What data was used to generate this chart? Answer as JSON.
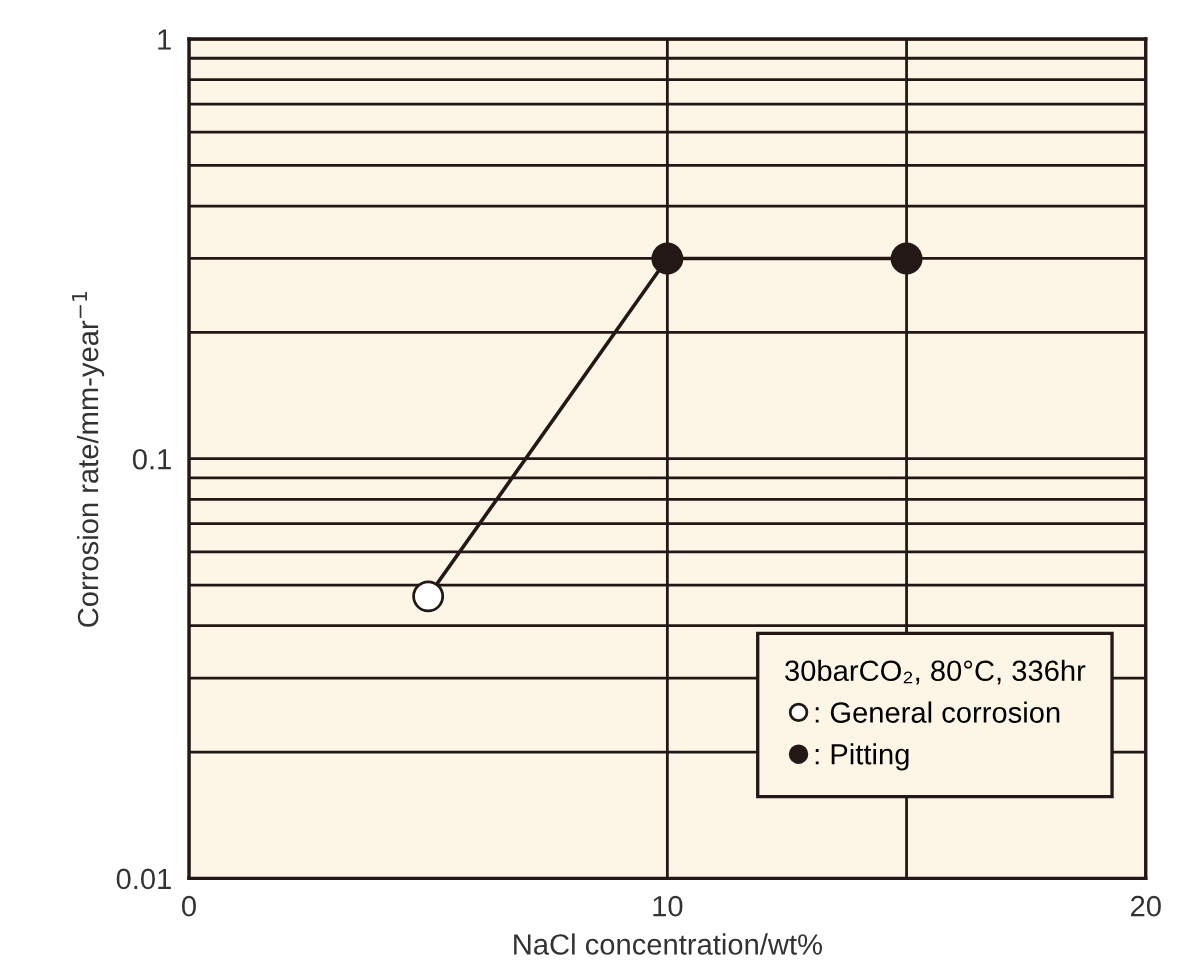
{
  "chart_data": {
    "type": "scatter",
    "xlabel": "NaCl concentration/wt%",
    "ylabel": "Corrosion rate/mm-year$^{−1}$",
    "legend_title": "30barCO₂, 80°C, 336hr",
    "series": [
      {
        "type": "line",
        "color": "#231815",
        "x": [
          5,
          10,
          15
        ],
        "values": [
          0.047,
          0.3,
          0.3
        ],
        "marker": "none",
        "line_style": "solid"
      },
      {
        "name": ": General corrosion",
        "color": "#ffffff",
        "x": [
          5
        ],
        "values": [
          0.047
        ],
        "marker": "circle"
      },
      {
        "name": ": Pitting",
        "color": "#231815",
        "x": [
          10,
          15
        ],
        "values": [
          0.3,
          0.3
        ],
        "marker": "circle"
      }
    ],
    "xlim": [
      0,
      20
    ],
    "xticks": [
      0,
      10,
      {
        "value": 15,
        "label": null
      },
      20
    ],
    "ylim": [
      0.01,
      1
    ],
    "log": "y",
    "yticks": [
      0.01,
      {
        "value": 0.02,
        "label": null
      },
      {
        "value": 0.03,
        "label": null
      },
      {
        "value": 0.04,
        "label": null
      },
      {
        "value": 0.05,
        "label": null
      },
      {
        "value": 0.06,
        "label": null
      },
      {
        "value": 0.07,
        "label": null
      },
      {
        "value": 0.08,
        "label": null
      },
      {
        "value": 0.09,
        "label": null
      },
      0.1,
      {
        "value": 0.2,
        "label": null
      },
      {
        "value": 0.3,
        "label": null
      },
      {
        "value": 0.4,
        "label": null
      },
      {
        "value": 0.5,
        "label": null
      },
      {
        "value": 0.6,
        "label": null
      },
      {
        "value": 0.7,
        "label": null
      },
      {
        "value": 0.8,
        "label": null
      },
      {
        "value": 0.9,
        "label": null
      },
      1
    ],
    "grid": true,
    "legend": "bottom right"
  }
}
